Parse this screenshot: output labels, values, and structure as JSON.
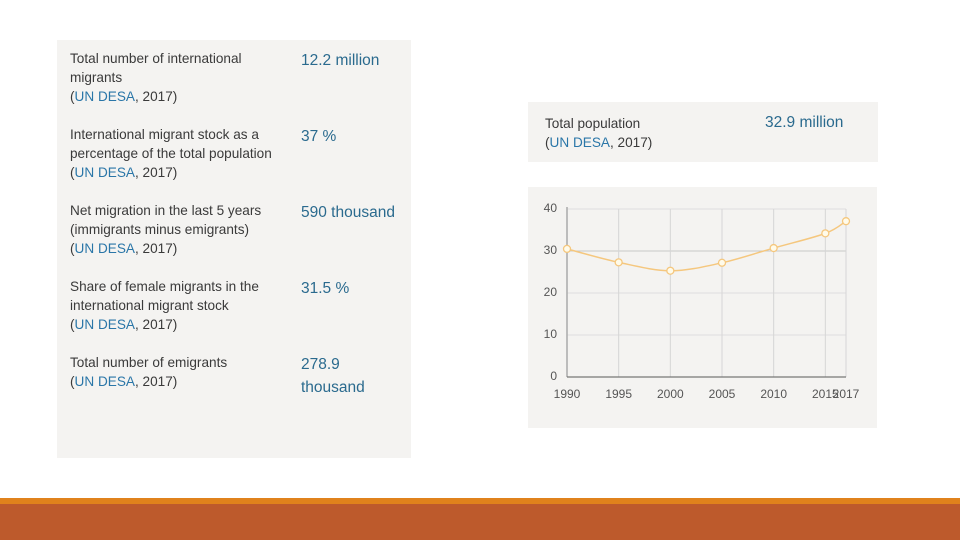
{
  "stats": [
    {
      "label": "Total number of international migrants",
      "value": "12.2 million",
      "source_link": "UN DESA",
      "source_year": ", 2017)"
    },
    {
      "label": "International migrant stock as a percentage of the total population",
      "value": "37 %",
      "source_link": "UN DESA",
      "source_year": ", 2017)"
    },
    {
      "label": "Net migration in the last 5 years (immigrants minus emigrants)",
      "value": "590 thousand",
      "source_link": "UN DESA",
      "source_year": ", 2017)"
    },
    {
      "label": "Share of female migrants in the international migrant stock",
      "value": "31.5 %",
      "source_link": "UN DESA",
      "source_year": ", 2017)"
    },
    {
      "label": "Total number of emigrants",
      "value": "278.9 thousand",
      "source_link": "UN DESA",
      "source_year": ", 2017)"
    }
  ],
  "population": {
    "label": "Total population",
    "value": "32.9 million",
    "source_link": "UN DESA",
    "source_year": ", 2017)"
  },
  "chart_data": {
    "type": "line",
    "x": [
      "1990",
      "1995",
      "2000",
      "2005",
      "2010",
      "2015",
      "2017"
    ],
    "x_values": [
      1990,
      1995,
      2000,
      2005,
      2010,
      2015,
      2017
    ],
    "values": [
      30.5,
      27.3,
      25.3,
      27.2,
      30.7,
      34.2,
      37.1
    ],
    "yticks": [
      0,
      10,
      20,
      30,
      40
    ],
    "ylim": [
      0,
      40
    ],
    "xlim": [
      1990,
      2017
    ],
    "grid": true,
    "title": "",
    "xlabel": "",
    "ylabel": "",
    "line_color": "#f5c77e"
  },
  "paren_open": "("
}
